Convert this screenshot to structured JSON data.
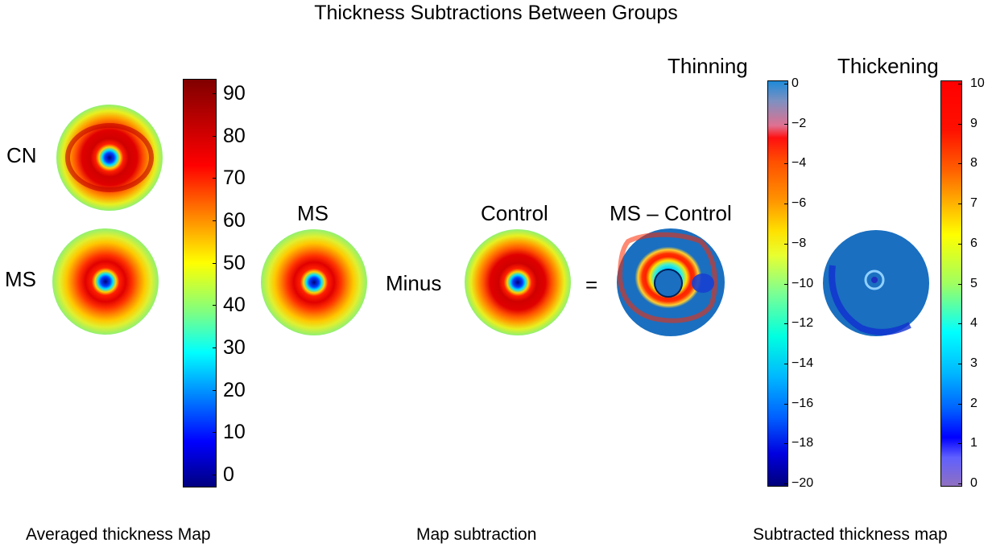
{
  "title": "Thickness Subtractions Between Groups",
  "labels": {
    "cn": "CN",
    "ms_left": "MS",
    "ms_mid": "MS",
    "minus": "Minus",
    "control": "Control",
    "equals": "=",
    "ms_minus_control": "MS – Control",
    "thinning": "Thinning",
    "thickening": "Thickening"
  },
  "captions": {
    "averaged": "Averaged thickness Map",
    "subtraction": "Map subtraction",
    "subtracted": "Subtracted thickness map"
  },
  "colorbars": {
    "thickness": {
      "ticks": [
        "90",
        "80",
        "70",
        "60",
        "50",
        "40",
        "30",
        "20",
        "10",
        "0"
      ],
      "range": [
        0,
        93
      ],
      "colormap": "jet"
    },
    "thinning": {
      "ticks": [
        "0",
        "−2",
        "−4",
        "−6",
        "−8",
        "−10",
        "−12",
        "−14",
        "−16",
        "−18",
        "−20"
      ],
      "range": [
        -20,
        0
      ],
      "colormap": "jet with grey-pink top"
    },
    "thickening": {
      "ticks": [
        "10",
        "9",
        "8",
        "7",
        "6",
        "5",
        "4",
        "3",
        "2",
        "1",
        "0"
      ],
      "range": [
        0,
        10
      ],
      "colormap": "jet with violet bottom"
    }
  },
  "colors": {
    "dark_red": "#800000",
    "red": "#ff0000",
    "orange": "#ff8000",
    "yellow": "#ffff00",
    "green": "#80ff80",
    "cyan": "#00ffff",
    "blue": "#0000ff",
    "navy": "#000080",
    "map_background_blue": "#1a6fc0"
  }
}
